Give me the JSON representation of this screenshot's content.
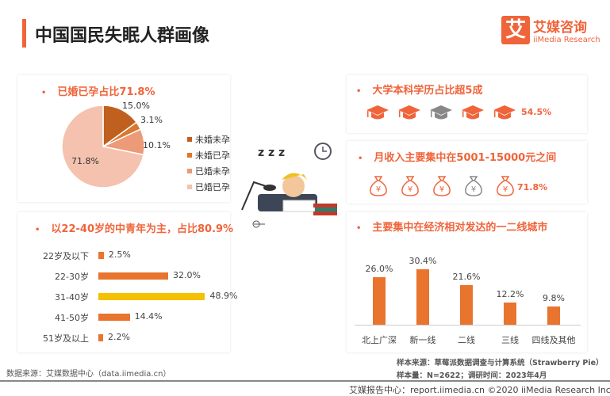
{
  "header": {
    "title": "中国国民失眠人群画像",
    "logo_cn": "艾媒咨询",
    "logo_en": "iiMedia Research",
    "logo_mark": "艾"
  },
  "colors": {
    "accent": "#f0643a",
    "bar": "#e8742e",
    "highlight": "#f5c000",
    "gray": "#888888"
  },
  "marriage": {
    "title": "已婚已孕占比71.8%",
    "chart_data": {
      "type": "pie",
      "categories": [
        "未婚未孕",
        "未婚已孕",
        "已婚未孕",
        "已婚已孕"
      ],
      "values": [
        15.0,
        3.1,
        10.1,
        71.8
      ],
      "labels": [
        "15.0%",
        "3.1%",
        "10.1%",
        "71.8%"
      ],
      "colors": [
        "#c0601f",
        "#d9782f",
        "#ec9a78",
        "#f4c2ae"
      ],
      "legend": "right"
    }
  },
  "age": {
    "title": "以22-40岁的中青年为主，占比80.9%",
    "chart_data": {
      "type": "bar",
      "orientation": "horizontal",
      "categories": [
        "22岁及以下",
        "22-30岁",
        "31-40岁",
        "41-50岁",
        "51岁及以上"
      ],
      "values": [
        2.5,
        32.0,
        48.9,
        14.4,
        2.2
      ],
      "labels": [
        "2.5%",
        "32.0%",
        "48.9%",
        "14.4%",
        "2.2%"
      ],
      "highlight": "31-40岁"
    }
  },
  "education": {
    "title": "大学本科学历占比超5成",
    "icon": "graduation-cap-icon",
    "icon_count": 5,
    "gray_index": 2,
    "value": "54.5%"
  },
  "income": {
    "title": "月收入主要集中在5001-15000元之间",
    "icon": "money-bag-icon",
    "icon_glyph": "¥",
    "icon_count": 5,
    "gray_index": 3,
    "value": "71.8%"
  },
  "city": {
    "title": "主要集中在经济相对发达的一二线城市",
    "chart_data": {
      "type": "bar",
      "categories": [
        "北上广深",
        "新一线",
        "二线",
        "三线",
        "四线及其他"
      ],
      "values": [
        26.0,
        30.4,
        21.6,
        12.2,
        9.8
      ],
      "labels": [
        "26.0%",
        "30.4%",
        "21.6%",
        "12.2%",
        "9.8%"
      ]
    }
  },
  "notes": {
    "source_left": "数据来源：艾媒数据中心（data.iimedia.cn）",
    "sample_source": "样本来源：草莓派数据调查与计算系统（Strawberry Pie）",
    "sample_size": "样本量：N=2622；调研时间：2023年4月"
  },
  "footer": {
    "text": "艾媒报告中心：report.iimedia.cn  ©2020  iiMedia Research  Inc"
  },
  "illustration": {
    "zzz": "z z z"
  }
}
